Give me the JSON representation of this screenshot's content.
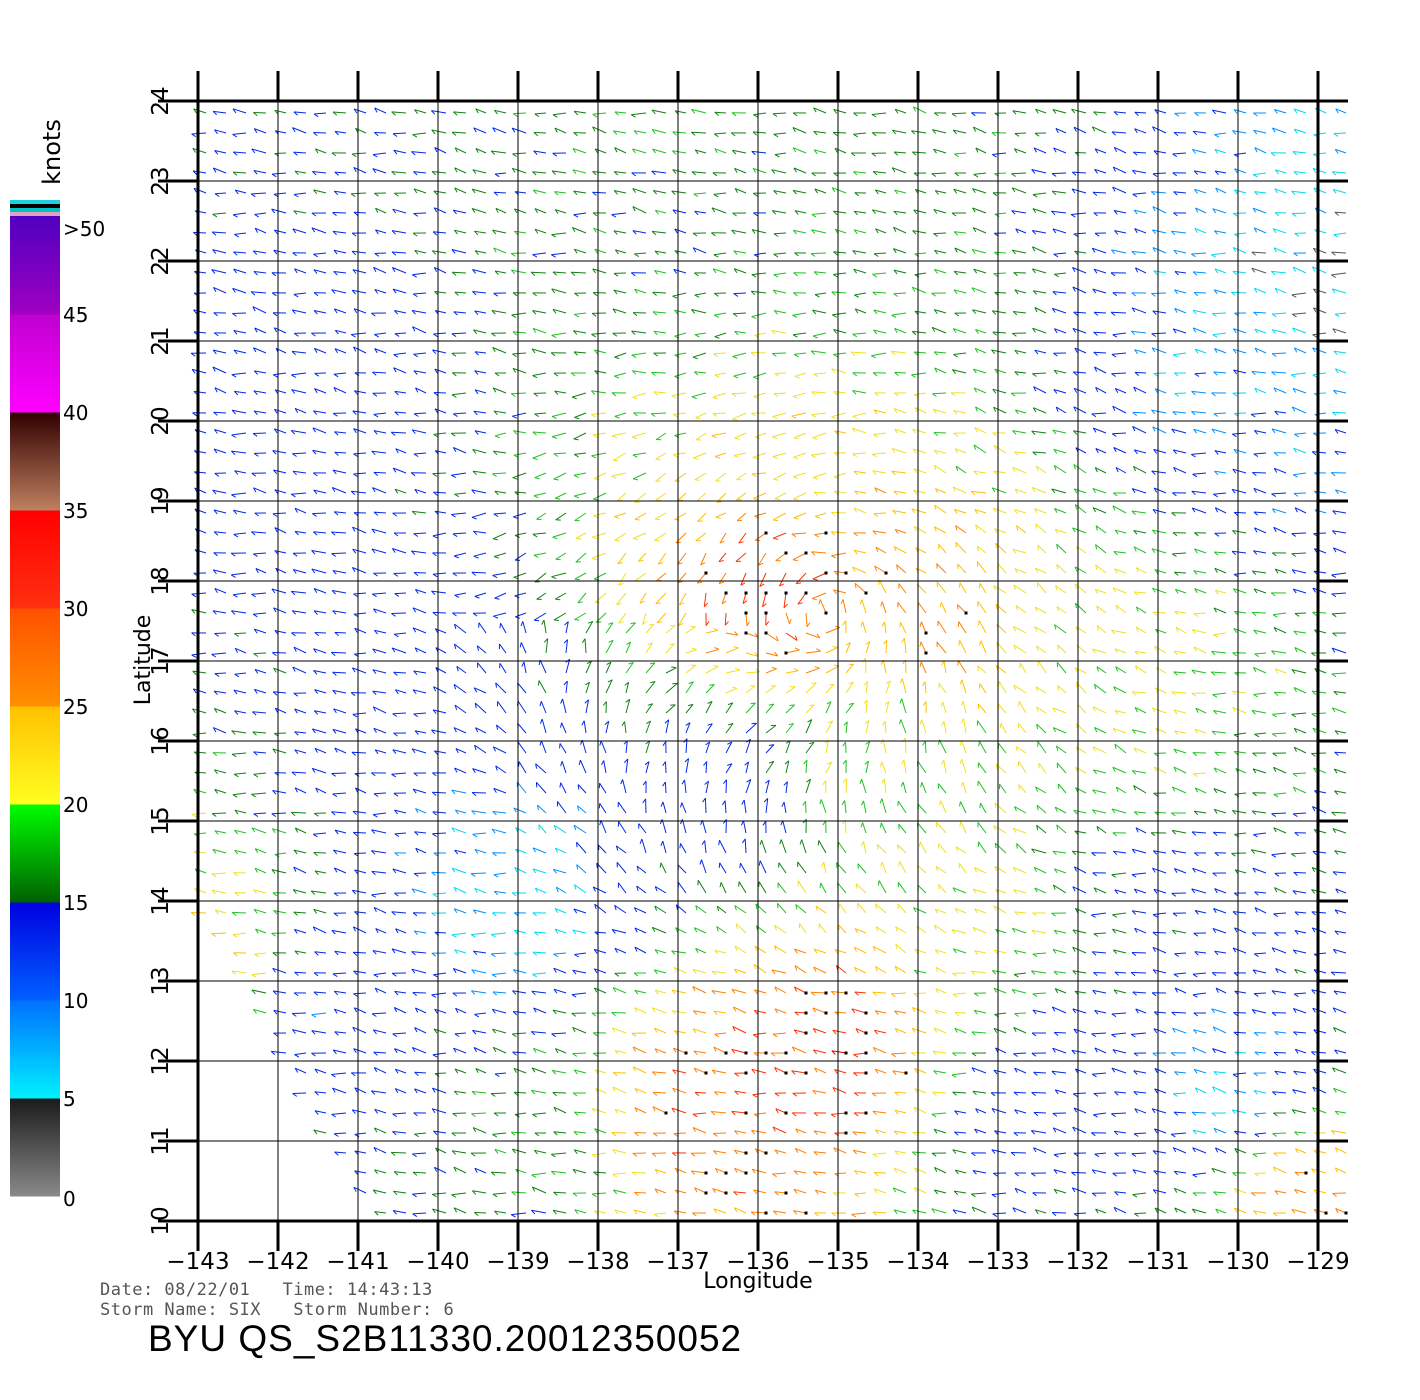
{
  "chart_data": {
    "type": "wind-vector-map",
    "xlabel": "Longitude",
    "ylabel": "Latitude",
    "xlim": [
      -143,
      -128.5
    ],
    "ylim": [
      10,
      24
    ],
    "x_ticks": [
      "-143",
      "-142",
      "-141",
      "-140",
      "-139",
      "-138",
      "-137",
      "-136",
      "-135",
      "-134",
      "-133",
      "-132",
      "-131",
      "-130",
      "-129"
    ],
    "y_ticks": [
      "10",
      "11",
      "12",
      "13",
      "14",
      "15",
      "16",
      "17",
      "18",
      "19",
      "20",
      "21",
      "22",
      "23",
      "24"
    ],
    "grid": true,
    "colorbar": {
      "title": "knots",
      "labels": [
        "0",
        "5",
        "10",
        "15",
        "20",
        "25",
        "30",
        "35",
        "40",
        "45",
        ">50"
      ],
      "bands": [
        {
          "from": 0,
          "to": 5,
          "colors": [
            "#8a8a8a",
            "#1a1a1a"
          ]
        },
        {
          "from": 5,
          "to": 10,
          "colors": [
            "#00f0ff",
            "#0070ff"
          ]
        },
        {
          "from": 10,
          "to": 15,
          "colors": [
            "#0060ff",
            "#0000e0"
          ]
        },
        {
          "from": 15,
          "to": 20,
          "colors": [
            "#006000",
            "#00ff00"
          ]
        },
        {
          "from": 20,
          "to": 25,
          "colors": [
            "#ffff20",
            "#ffc000"
          ]
        },
        {
          "from": 25,
          "to": 30,
          "colors": [
            "#ff9000",
            "#ff5000"
          ]
        },
        {
          "from": 30,
          "to": 35,
          "colors": [
            "#ff3010",
            "#ff0000"
          ]
        },
        {
          "from": 35,
          "to": 40,
          "colors": [
            "#c08060",
            "#300000"
          ]
        },
        {
          "from": 40,
          "to": 45,
          "colors": [
            "#ff00ff",
            "#c000d0"
          ]
        },
        {
          "from": 45,
          "to": 50,
          "colors": [
            "#a000c0",
            "#5000c0"
          ]
        }
      ],
      "top_stripes": [
        "#e0a0c0",
        "#00c0c0",
        "#000000",
        "#20d0e0"
      ]
    },
    "wind_regions": [
      {
        "lon": -141.5,
        "lat": 20.5,
        "speed_kt": 12
      },
      {
        "lon": -140.0,
        "lat": 17.0,
        "speed_kt": 12
      },
      {
        "lon": -137.0,
        "lat": 22.0,
        "speed_kt": 16
      },
      {
        "lon": -134.5,
        "lat": 22.5,
        "speed_kt": 17
      },
      {
        "lon": -135.5,
        "lat": 19.5,
        "speed_kt": 22
      },
      {
        "lon": -135.8,
        "lat": 18.0,
        "speed_kt": 30
      },
      {
        "lon": -134.0,
        "lat": 17.3,
        "speed_kt": 26
      },
      {
        "lon": -131.5,
        "lat": 17.0,
        "speed_kt": 21
      },
      {
        "lon": -130.0,
        "lat": 20.5,
        "speed_kt": 9
      },
      {
        "lon": -129.0,
        "lat": 21.5,
        "speed_kt": 6
      },
      {
        "lon": -134.5,
        "lat": 15.7,
        "speed_kt": 19
      },
      {
        "lon": -136.5,
        "lat": 15.3,
        "speed_kt": 12
      },
      {
        "lon": -139.0,
        "lat": 14.0,
        "speed_kt": 7
      },
      {
        "lon": -141.5,
        "lat": 12.5,
        "speed_kt": 11
      },
      {
        "lon": -135.0,
        "lat": 12.2,
        "speed_kt": 30
      },
      {
        "lon": -136.5,
        "lat": 11.3,
        "speed_kt": 28
      },
      {
        "lon": -133.5,
        "lat": 13.5,
        "speed_kt": 21
      },
      {
        "lon": -132.5,
        "lat": 11.5,
        "speed_kt": 12
      },
      {
        "lon": -130.0,
        "lat": 11.5,
        "speed_kt": 7
      },
      {
        "lon": -129.2,
        "lat": 10.5,
        "speed_kt": 27
      },
      {
        "lon": -130.8,
        "lat": 13.5,
        "speed_kt": 13
      },
      {
        "lon": -139.0,
        "lat": 10.7,
        "speed_kt": 16
      },
      {
        "lon": -142.8,
        "lat": 13.0,
        "speed_kt": 24
      }
    ]
  },
  "info": {
    "date_line": "Date: 08/22/01   Time: 14:43:13",
    "storm_line": "Storm Name: SIX   Storm Number: 6",
    "file_id": "BYU QS_S2B11330.20012350052"
  }
}
